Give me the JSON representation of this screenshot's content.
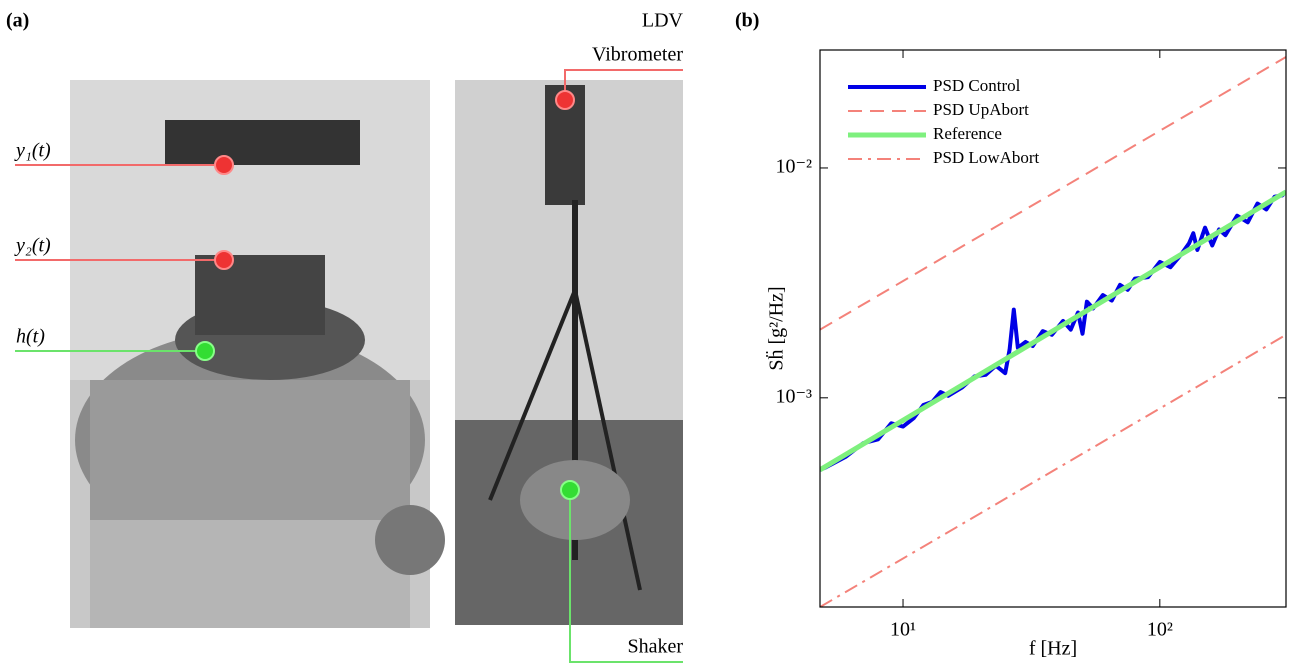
{
  "panel_a": {
    "label": "(a)",
    "y1": "y₁(t)",
    "y2": "y₂(t)",
    "h": "h(t)",
    "ldv": "LDV",
    "vibrometer": "Vibrometer",
    "shaker": "Shaker"
  },
  "chart_data": {
    "type": "line",
    "panel_label": "(b)",
    "xlabel": "f [Hz]",
    "ylabel": "Sḧ [g²/Hz]",
    "xscale": "log",
    "yscale": "log",
    "xlim": [
      4.75,
      310
    ],
    "ylim": [
      0.000123,
      0.0326
    ],
    "xticks": [
      {
        "value": 10,
        "label": "10¹"
      },
      {
        "value": 100,
        "label": "10²"
      }
    ],
    "yticks": [
      {
        "value": 0.001,
        "label": "10⁻³"
      },
      {
        "value": 0.01,
        "label": "10⁻²"
      }
    ],
    "legend": "upper left",
    "series": [
      {
        "name": "PSD Control",
        "color": "#0000e6",
        "style": "solid",
        "width": 4,
        "x": [
          4.75,
          5,
          6,
          7,
          8,
          9,
          10,
          11,
          12,
          13,
          14,
          15,
          17,
          19,
          21,
          23,
          25,
          26,
          27,
          28,
          30,
          32,
          35,
          38,
          42,
          45,
          48,
          50,
          52,
          55,
          60,
          65,
          70,
          75,
          80,
          90,
          100,
          110,
          120,
          130,
          135,
          140,
          150,
          160,
          170,
          180,
          200,
          220,
          240,
          260,
          280,
          300,
          310
        ],
        "values": [
          0.000486,
          0.000498,
          0.000555,
          0.000635,
          0.00066,
          0.000775,
          0.00075,
          0.000815,
          0.00093,
          0.00096,
          0.00106,
          0.00102,
          0.00111,
          0.00124,
          0.00126,
          0.00138,
          0.00128,
          0.00162,
          0.00242,
          0.00165,
          0.00175,
          0.00168,
          0.00195,
          0.00188,
          0.00216,
          0.00198,
          0.00235,
          0.0019,
          0.00262,
          0.00245,
          0.0028,
          0.00265,
          0.0031,
          0.00295,
          0.0033,
          0.00335,
          0.0039,
          0.0037,
          0.00415,
          0.0047,
          0.0052,
          0.0044,
          0.0055,
          0.0046,
          0.0054,
          0.0051,
          0.0062,
          0.0058,
          0.007,
          0.0066,
          0.0075,
          0.0076,
          0.0079
        ]
      },
      {
        "name": "PSD UpAbort",
        "color": "#f4827a",
        "style": "dashed",
        "width": 2,
        "x": [
          4.75,
          310
        ],
        "values": [
          0.00198,
          0.0304
        ]
      },
      {
        "name": "Reference",
        "color": "#7ef07e",
        "style": "solid",
        "width": 5,
        "x": [
          4.75,
          310
        ],
        "values": [
          0.000486,
          0.00787
        ]
      },
      {
        "name": "PSD LowAbort",
        "color": "#f4827a",
        "style": "dashdot",
        "width": 2,
        "x": [
          4.75,
          310
        ],
        "values": [
          0.000123,
          0.00188
        ]
      }
    ]
  }
}
